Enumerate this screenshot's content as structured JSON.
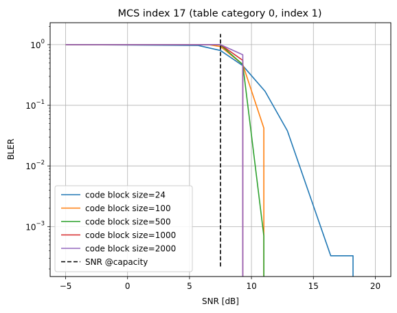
{
  "chart_data": {
    "type": "line",
    "title": "MCS index 17 (table category 0, index 1)",
    "xlabel": "SNR [dB]",
    "ylabel": "BLER",
    "xscale": "linear",
    "yscale": "log",
    "xlim": [
      -6.25,
      21.25
    ],
    "ylim": [
      0.00015,
      2.3
    ],
    "xticks": [
      -5,
      0,
      5,
      10,
      15,
      20
    ],
    "xtick_labels": [
      "−5",
      "0",
      "5",
      "10",
      "15",
      "20"
    ],
    "yticks": [
      0.001,
      0.01,
      0.1,
      1
    ],
    "ytick_labels": [
      {
        "base": "10",
        "exp": "−3"
      },
      {
        "base": "10",
        "exp": "−2"
      },
      {
        "base": "10",
        "exp": "−1"
      },
      {
        "base": "10",
        "exp": "0"
      }
    ],
    "grid": true,
    "legend_position": "lower-left",
    "series": [
      {
        "name": "code block size=24",
        "color": "#1f77b4",
        "style": "solid",
        "x": [
          -5,
          5.7,
          7.5,
          9.3,
          11.1,
          12.9,
          14.7,
          16.4,
          18.2,
          18.2
        ],
        "y": [
          1,
          0.97,
          0.8,
          0.45,
          0.17,
          0.038,
          0.0033,
          0.00033,
          0.00033,
          0.00015
        ]
      },
      {
        "name": "code block size=100",
        "color": "#ff7f0e",
        "style": "solid",
        "x": [
          -5,
          6.5,
          7.5,
          9.3,
          11.0,
          11.0
        ],
        "y": [
          1,
          1,
          0.93,
          0.47,
          0.042,
          0.00015
        ]
      },
      {
        "name": "code block size=500",
        "color": "#2ca02c",
        "style": "solid",
        "x": [
          -5,
          7.0,
          7.5,
          9.3,
          11.0,
          11.0
        ],
        "y": [
          1,
          1,
          0.99,
          0.47,
          0.0007,
          0.00015
        ]
      },
      {
        "name": "code block size=1000",
        "color": "#d62728",
        "style": "solid",
        "x": [
          -5,
          7.5,
          9.3,
          9.3
        ],
        "y": [
          1,
          1,
          0.55,
          0.00015
        ]
      },
      {
        "name": "code block size=2000",
        "color": "#9467bd",
        "style": "solid",
        "x": [
          -5,
          7.5,
          9.3,
          9.3
        ],
        "y": [
          1,
          1,
          0.68,
          0.00015
        ]
      },
      {
        "name": "SNR @capacity",
        "color": "#000000",
        "style": "dashed",
        "x": [
          7.5,
          7.5
        ],
        "y": [
          0.00022,
          1.5
        ]
      }
    ]
  }
}
